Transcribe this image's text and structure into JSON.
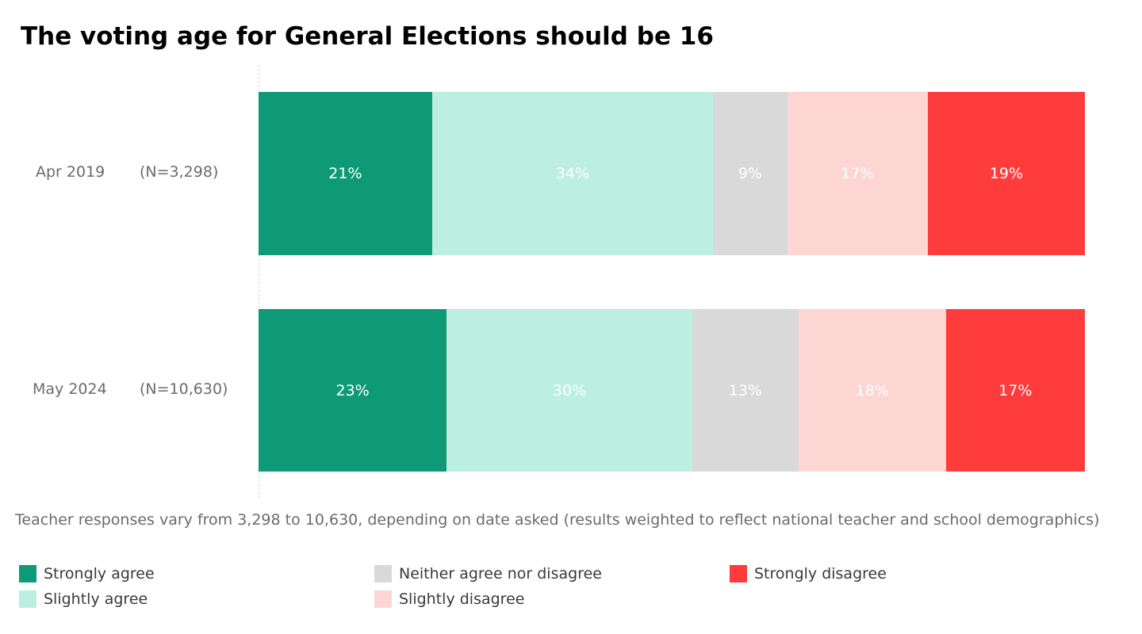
{
  "chart_data": {
    "type": "bar",
    "orientation": "horizontal",
    "stacked": true,
    "normalized": true,
    "title": "The voting age for General Elections should be 16",
    "categories": [
      "Apr 2019",
      "May 2024"
    ],
    "sample_sizes": [
      "(N=3,298)",
      "(N=10,630)"
    ],
    "series": [
      {
        "name": "Strongly agree",
        "color": "#0f9a77",
        "values": [
          21,
          23
        ],
        "labels": [
          "21%",
          "23%"
        ]
      },
      {
        "name": "Slightly agree",
        "color": "#bcefe0",
        "values": [
          34,
          30
        ],
        "labels": [
          "34%",
          "30%"
        ]
      },
      {
        "name": "Neither agree nor disagree",
        "color": "#d9d9d9",
        "values": [
          9,
          13
        ],
        "labels": [
          "9%",
          "13%"
        ]
      },
      {
        "name": "Slightly disagree",
        "color": "#fdd5d3",
        "values": [
          17,
          18
        ],
        "labels": [
          "17%",
          "18%"
        ]
      },
      {
        "name": "Strongly disagree",
        "color": "#ff3c3c",
        "values": [
          19,
          17
        ],
        "labels": [
          "19%",
          "17%"
        ]
      }
    ],
    "xlabel": "",
    "ylabel": "",
    "xlim": [
      0,
      100
    ],
    "grid": false,
    "legend_position": "bottom",
    "footnote": "Teacher responses vary from 3,298 to 10,630, depending on date asked (results weighted to reflect national teacher and school demographics)"
  }
}
